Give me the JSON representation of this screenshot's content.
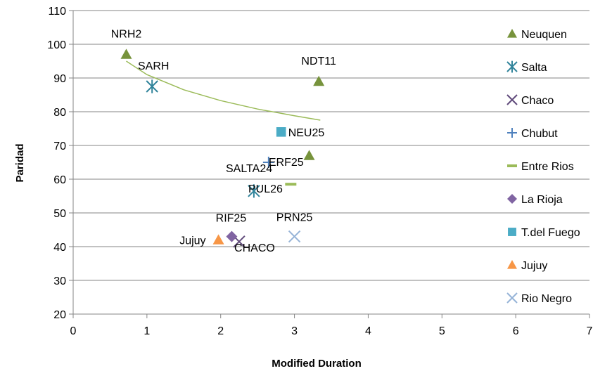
{
  "chart_data": {
    "type": "scatter",
    "xlabel": "Modified Duration",
    "ylabel": "Paridad",
    "xlim": [
      0,
      7
    ],
    "ylim": [
      20,
      110
    ],
    "xticks": [
      0,
      1,
      2,
      3,
      4,
      5,
      6,
      7
    ],
    "yticks": [
      20,
      30,
      40,
      50,
      60,
      70,
      80,
      90,
      100,
      110
    ],
    "grid": "horizontal major",
    "legend_position": "right",
    "series": [
      {
        "name": "Neuquen",
        "marker": "triangle",
        "color": "#77933C",
        "points": [
          {
            "x": 0.72,
            "y": 97,
            "label": "NRH2"
          },
          {
            "x": 3.33,
            "y": 89,
            "label": "NDT11"
          },
          {
            "x": 3.2,
            "y": 67,
            "label": ""
          }
        ]
      },
      {
        "name": "Salta",
        "marker": "asterisk",
        "color": "#31849B",
        "points": [
          {
            "x": 1.07,
            "y": 87.5,
            "label": "SARH"
          },
          {
            "x": 2.45,
            "y": 56.5,
            "label": ""
          }
        ]
      },
      {
        "name": "Chaco",
        "marker": "x",
        "color": "#604A7B",
        "points": [
          {
            "x": 2.25,
            "y": 41.5,
            "label": "CHACO"
          }
        ]
      },
      {
        "name": "Chubut",
        "marker": "plus",
        "color": "#4F81BD",
        "points": [
          {
            "x": 2.65,
            "y": 65,
            "label": "ERF25"
          }
        ]
      },
      {
        "name": "Entre Rios",
        "marker": "dash",
        "color": "#9BBB59",
        "points": [
          {
            "x": 2.95,
            "y": 58.5,
            "label": ""
          }
        ]
      },
      {
        "name": "La Rioja",
        "marker": "diamond",
        "color": "#8064A2",
        "points": [
          {
            "x": 2.15,
            "y": 43,
            "label": "RIF25"
          }
        ]
      },
      {
        "name": "T.del Fuego",
        "marker": "square",
        "color": "#4BACC6",
        "points": [
          {
            "x": 2.82,
            "y": 74,
            "label": "NEU25"
          }
        ]
      },
      {
        "name": "Jujuy",
        "marker": "triangle",
        "color": "#F79646",
        "points": [
          {
            "x": 1.97,
            "y": 42,
            "label": "Jujuy"
          }
        ]
      },
      {
        "name": "Rio Negro",
        "marker": "x",
        "color": "#95B3D7",
        "points": [
          {
            "x": 3.0,
            "y": 43,
            "label": "PRN25"
          }
        ]
      }
    ],
    "annotations": [
      "SALTA24",
      "PUL26"
    ],
    "trendline": {
      "type": "log",
      "color": "#9BBB59",
      "x": [
        0.72,
        1.0,
        1.5,
        2.0,
        2.5,
        3.0,
        3.35
      ],
      "y": [
        95,
        91,
        86.5,
        83.3,
        80.8,
        78.8,
        77.5
      ]
    }
  }
}
